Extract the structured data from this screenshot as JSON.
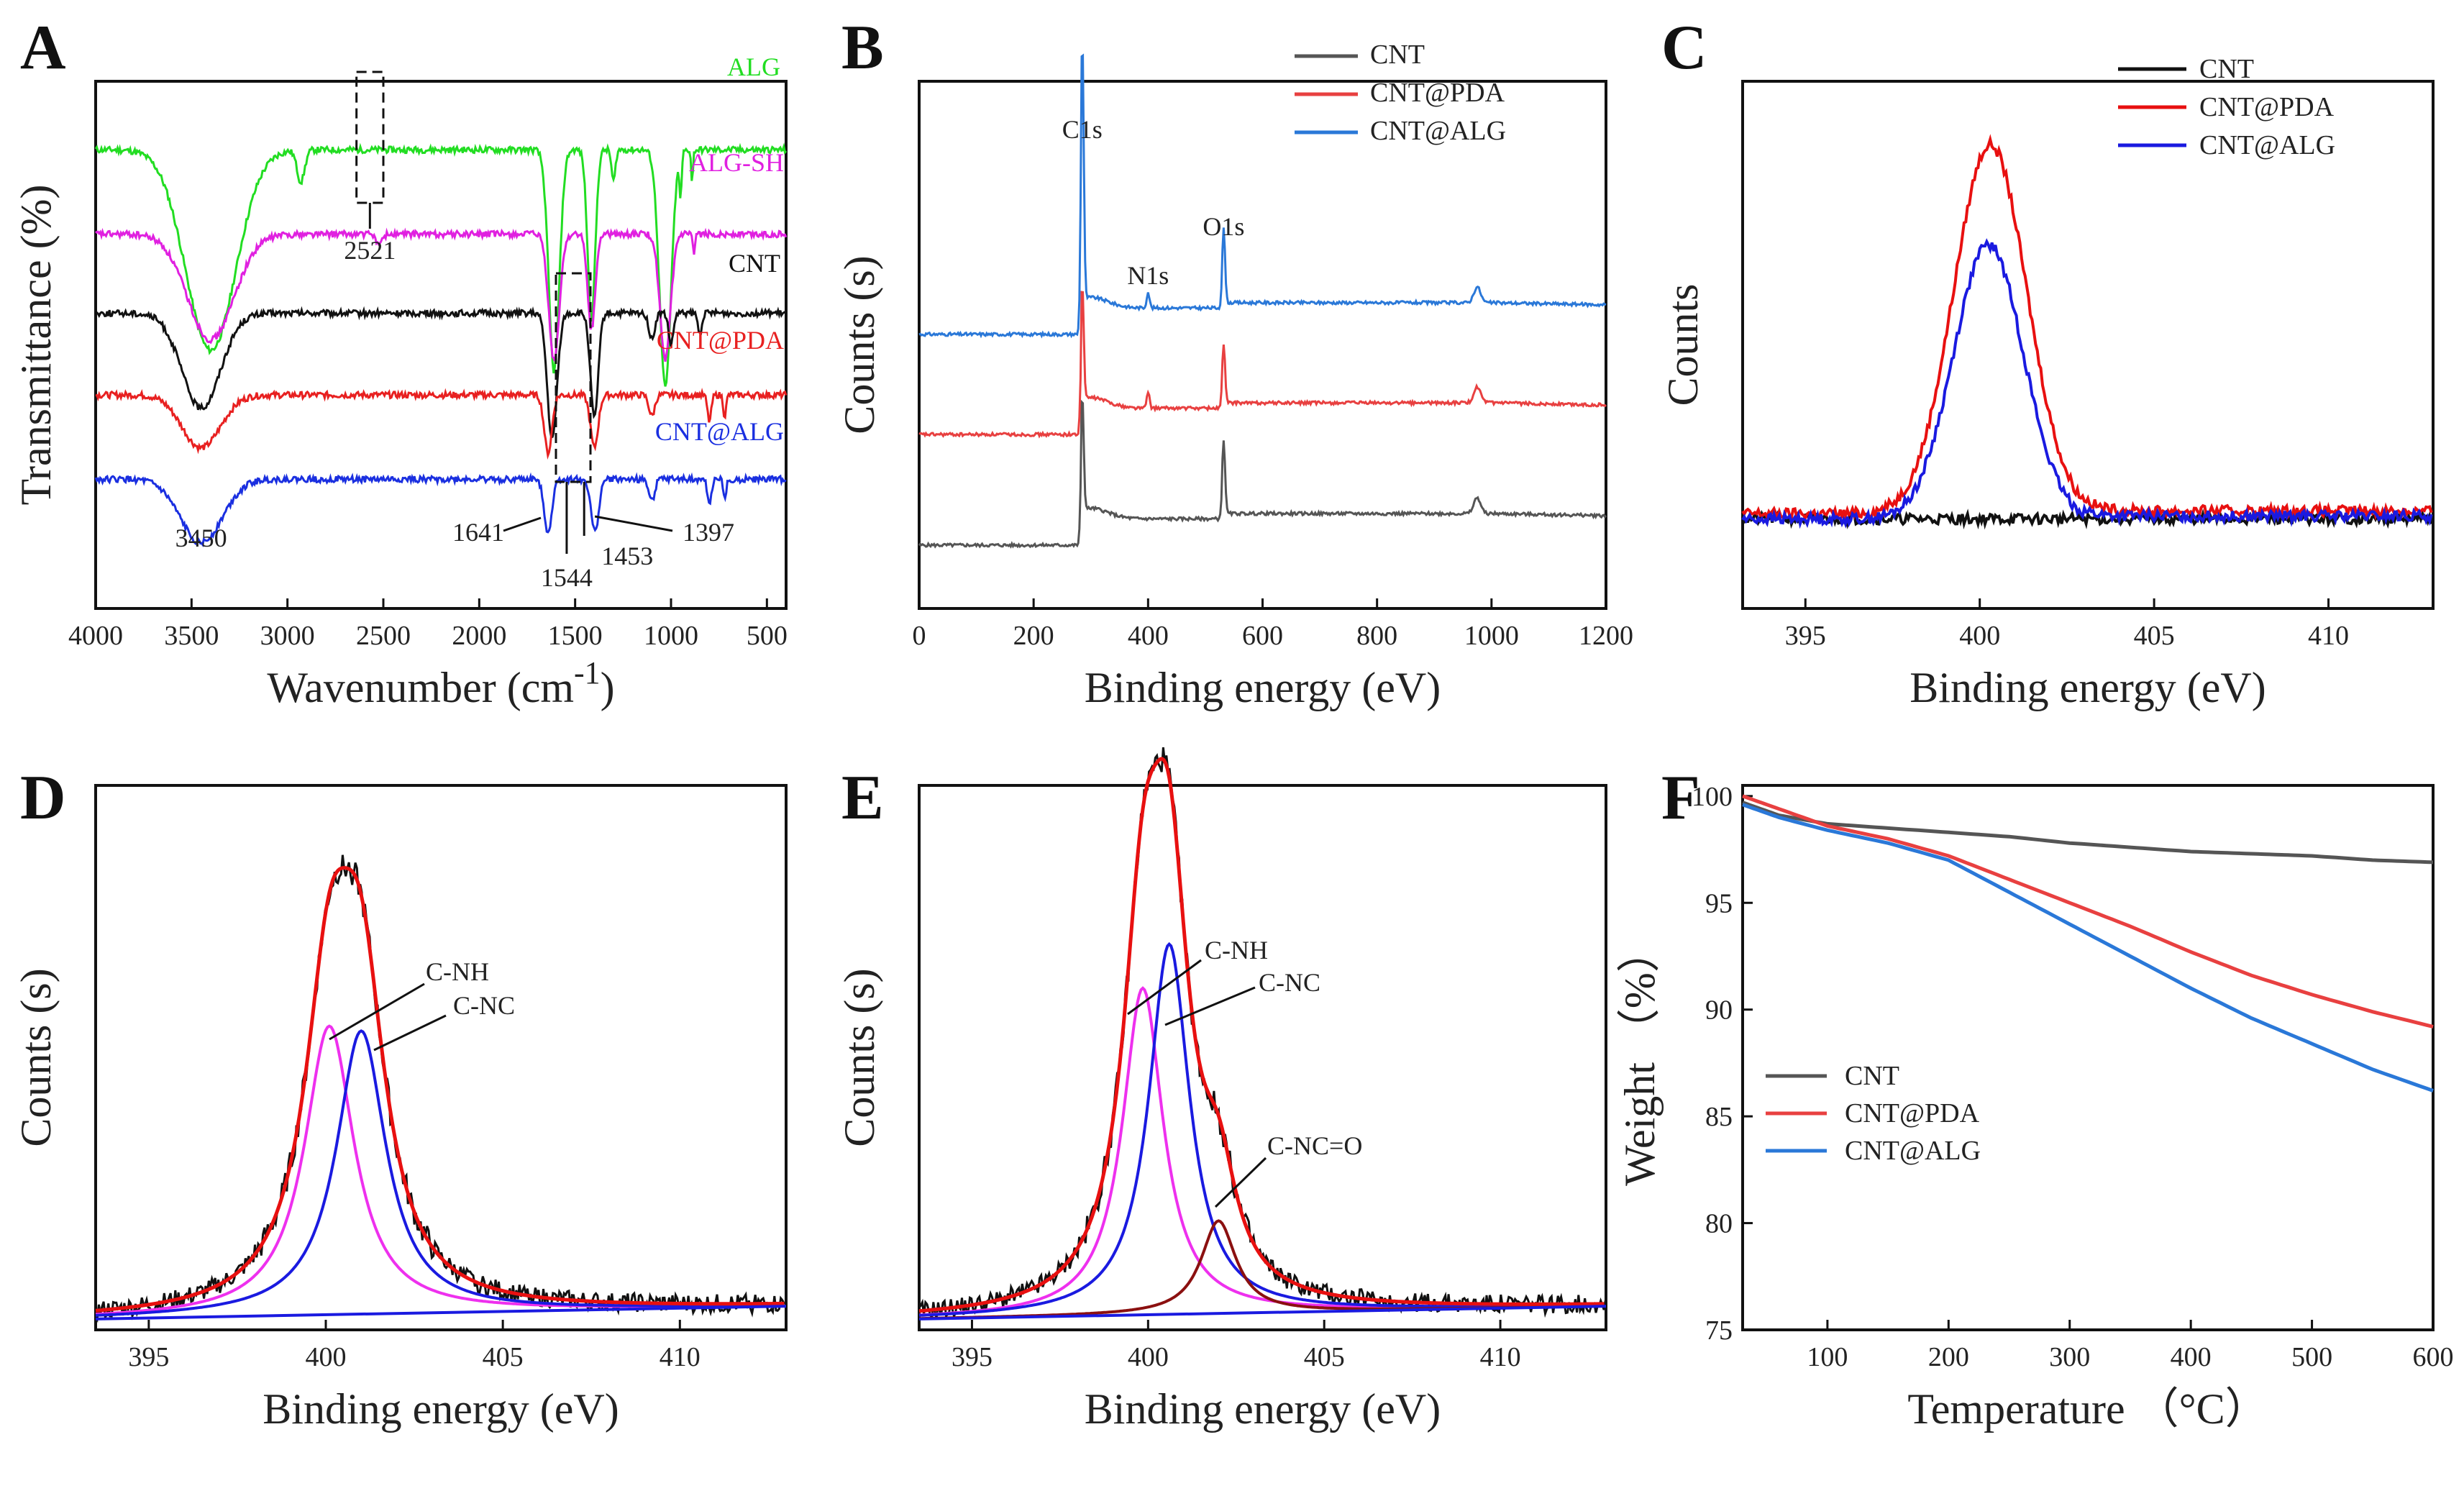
{
  "figure": {
    "panel_letters": [
      "A",
      "B",
      "C",
      "D",
      "E",
      "F"
    ]
  },
  "chart_data": [
    {
      "panel": "A",
      "type": "line",
      "title": "",
      "xlabel": "Wavenumber (cm",
      "xlabel_sup": "-1",
      "xlabel_end": ")",
      "ylabel": "Transmittance (%)",
      "xlim": [
        4000,
        400
      ],
      "xticks": [
        4000,
        3500,
        3000,
        2500,
        2000,
        1500,
        1000,
        500
      ],
      "series": [
        {
          "name": "ALG",
          "color": "#22dd22",
          "offset": 0.87,
          "peaks": [
            [
              3400,
              0.38,
              260
            ],
            [
              2930,
              0.06,
              40
            ],
            [
              1610,
              0.42,
              55
            ],
            [
              1415,
              0.32,
              40
            ],
            [
              1300,
              0.06,
              20
            ],
            [
              1030,
              0.45,
              60
            ],
            [
              950,
              0.08,
              12
            ],
            [
              890,
              0.06,
              10
            ]
          ]
        },
        {
          "name": "ALG-SH",
          "color": "#e020e0",
          "offset": 0.71,
          "peaks": [
            [
              3400,
              0.2,
              240
            ],
            [
              2521,
              0.02,
              30
            ],
            [
              1610,
              0.24,
              55
            ],
            [
              1415,
              0.18,
              40
            ],
            [
              1030,
              0.24,
              55
            ],
            [
              880,
              0.04,
              12
            ]
          ]
        },
        {
          "name": "CNT",
          "color": "#111111",
          "offset": 0.56,
          "peaks": [
            [
              3450,
              0.18,
              200
            ],
            [
              1620,
              0.24,
              50
            ],
            [
              1400,
              0.2,
              40
            ],
            [
              1100,
              0.05,
              30
            ],
            [
              1000,
              0.06,
              25
            ],
            [
              850,
              0.04,
              20
            ]
          ]
        },
        {
          "name": "CNT@PDA",
          "color": "#e82020",
          "offset": 0.405,
          "peaks": [
            [
              3450,
              0.1,
              200
            ],
            [
              1641,
              0.11,
              40
            ],
            [
              1400,
              0.1,
              40
            ],
            [
              1100,
              0.04,
              30
            ],
            [
              800,
              0.05,
              20
            ],
            [
              720,
              0.04,
              15
            ]
          ]
        },
        {
          "name": "CNT@ALG",
          "color": "#1a2fe0",
          "offset": 0.245,
          "peaks": [
            [
              3450,
              0.12,
              220
            ],
            [
              1641,
              0.1,
              40
            ],
            [
              1397,
              0.1,
              40
            ],
            [
              1100,
              0.04,
              30
            ],
            [
              800,
              0.05,
              20
            ],
            [
              720,
              0.04,
              15
            ]
          ]
        }
      ],
      "annotations": [
        "3450",
        "2521",
        "1641",
        "1544",
        "1453",
        "1397"
      ]
    },
    {
      "panel": "B",
      "type": "line",
      "xlabel": "Binding energy (eV)",
      "ylabel": "Counts (s)",
      "xlim": [
        0,
        1200
      ],
      "xticks": [
        0,
        200,
        400,
        600,
        800,
        1000,
        1200
      ],
      "series": [
        {
          "name": "CNT",
          "color": "#555555",
          "base": 0.12,
          "c1s": 0.22,
          "n1s": 0.0,
          "o1s": 0.14
        },
        {
          "name": "CNT@PDA",
          "color": "#e84040",
          "base": 0.33,
          "c1s": 0.22,
          "n1s": 0.03,
          "o1s": 0.11
        },
        {
          "name": "CNT@ALG",
          "color": "#2a78d8",
          "base": 0.52,
          "c1s": 0.5,
          "n1s": 0.03,
          "o1s": 0.14
        }
      ],
      "annotations": [
        "C1s",
        "N1s",
        "O1s"
      ]
    },
    {
      "panel": "C",
      "type": "line",
      "xlabel": "Binding energy (eV)",
      "ylabel": "Counts",
      "xlim": [
        393.2,
        413
      ],
      "xticks": [
        395,
        400,
        405,
        410
      ],
      "series": [
        {
          "name": "CNT",
          "color": "#111111",
          "center": 400.3,
          "height": 0.0,
          "sigma": 1.0,
          "base": 0.17
        },
        {
          "name": "CNT@PDA",
          "color": "#e81010",
          "center": 400.3,
          "height": 0.7,
          "sigma": 1.05,
          "base": 0.18
        },
        {
          "name": "CNT@ALG",
          "color": "#1a1ae0",
          "center": 400.25,
          "height": 0.52,
          "sigma": 1.0,
          "base": 0.17
        }
      ]
    },
    {
      "panel": "D",
      "type": "line",
      "xlabel": "Binding energy (eV)",
      "ylabel": "Counts (s)",
      "xlim": [
        393.5,
        413
      ],
      "xticks": [
        395,
        400,
        405,
        410
      ],
      "components": [
        {
          "name": "C-NH",
          "color": "#ee30ee",
          "center": 400.1,
          "height": 0.53,
          "width": 0.85
        },
        {
          "name": "C-NC",
          "color": "#1a1ae0",
          "center": 401.0,
          "height": 0.52,
          "width": 0.85
        }
      ],
      "envelope_color": "#e81010",
      "raw_color": "#111111",
      "annotations": [
        "C-NH",
        "C-NC"
      ]
    },
    {
      "panel": "E",
      "type": "line",
      "xlabel": "Binding energy (eV)",
      "ylabel": "Counts (s)",
      "xlim": [
        393.5,
        413
      ],
      "xticks": [
        395,
        400,
        405,
        410
      ],
      "components": [
        {
          "name": "C-NH",
          "color": "#ee30ee",
          "center": 399.85,
          "height": 0.6,
          "width": 0.7
        },
        {
          "name": "C-NC",
          "color": "#1a1ae0",
          "center": 400.6,
          "height": 0.68,
          "width": 0.7
        },
        {
          "name": "C-NC=O",
          "color": "#8b1010",
          "center": 402.0,
          "height": 0.17,
          "width": 0.6
        }
      ],
      "envelope_color": "#e81010",
      "raw_color": "#111111",
      "annotations": [
        "C-NH",
        "C-NC",
        "C-NC=O"
      ]
    },
    {
      "panel": "F",
      "type": "line",
      "xlabel": "Temperature  （°C）",
      "ylabel": "Weight （%）",
      "xlim": [
        30,
        600
      ],
      "ylim": [
        75,
        100.5
      ],
      "xticks": [
        100,
        200,
        300,
        400,
        500,
        600
      ],
      "yticks": [
        75,
        80,
        85,
        90,
        95,
        100
      ],
      "series": [
        {
          "name": "CNT",
          "color": "#555555",
          "x": [
            30,
            60,
            100,
            150,
            200,
            250,
            300,
            350,
            400,
            450,
            500,
            550,
            600
          ],
          "y": [
            99.7,
            99.1,
            98.7,
            98.5,
            98.3,
            98.1,
            97.8,
            97.6,
            97.4,
            97.3,
            97.2,
            97.0,
            96.9
          ]
        },
        {
          "name": "CNT@PDA",
          "color": "#e84040",
          "x": [
            30,
            60,
            100,
            150,
            200,
            250,
            300,
            350,
            400,
            450,
            500,
            550,
            600
          ],
          "y": [
            100.0,
            99.4,
            98.6,
            98.0,
            97.2,
            96.1,
            95.0,
            93.9,
            92.7,
            91.6,
            90.7,
            89.9,
            89.2
          ]
        },
        {
          "name": "CNT@ALG",
          "color": "#2a78d8",
          "x": [
            30,
            60,
            100,
            150,
            200,
            250,
            300,
            350,
            400,
            450,
            500,
            550,
            600
          ],
          "y": [
            99.6,
            99.0,
            98.4,
            97.8,
            97.0,
            95.5,
            94.0,
            92.5,
            91.0,
            89.6,
            88.4,
            87.2,
            86.2
          ]
        }
      ]
    }
  ]
}
